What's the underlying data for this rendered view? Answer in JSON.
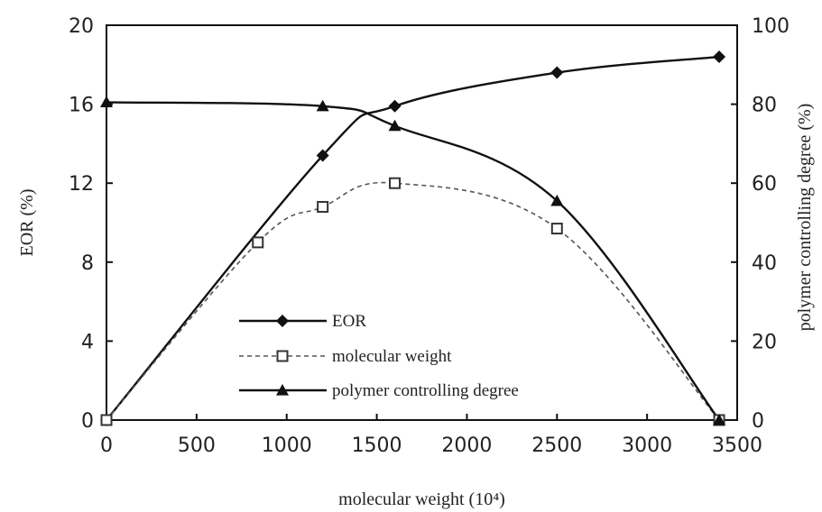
{
  "chart_data": {
    "type": "line",
    "xlabel": "molecular weight (10⁴)",
    "ylabel_left": "EOR (%)",
    "ylabel_right": "polymer controlling degree (%)",
    "xlim": [
      0,
      3500
    ],
    "ylim_left": [
      0,
      20
    ],
    "ylim_right": [
      0,
      100
    ],
    "x_ticks": [
      "0",
      "500",
      "1000",
      "1500",
      "2000",
      "2500",
      "3000",
      "3500"
    ],
    "y_left_ticks": [
      "0",
      "4",
      "8",
      "12",
      "16",
      "20"
    ],
    "y_right_ticks": [
      "0",
      "20",
      "40",
      "60",
      "80",
      "100"
    ],
    "grid": false,
    "legend_position": "lower-center",
    "series": [
      {
        "name": "EOR",
        "axis": "left",
        "marker": "diamond",
        "line": "solid",
        "color": "#111111",
        "x": [
          0,
          1200,
          1600,
          2500,
          3400
        ],
        "y": [
          0,
          13.4,
          15.9,
          17.6,
          18.4
        ]
      },
      {
        "name": "molecular weight",
        "axis": "left",
        "marker": "square-open",
        "line": "dashed",
        "color": "#555555",
        "x": [
          0,
          840,
          1200,
          1600,
          2500,
          3400
        ],
        "y": [
          0,
          9.0,
          10.8,
          12.0,
          9.7,
          0
        ]
      },
      {
        "name": "polymer controlling degree",
        "axis": "right",
        "marker": "triangle",
        "line": "solid",
        "color": "#111111",
        "x": [
          0,
          1200,
          1600,
          2500,
          3400
        ],
        "y": [
          80.5,
          79.5,
          74.5,
          55.5,
          0
        ]
      }
    ]
  }
}
